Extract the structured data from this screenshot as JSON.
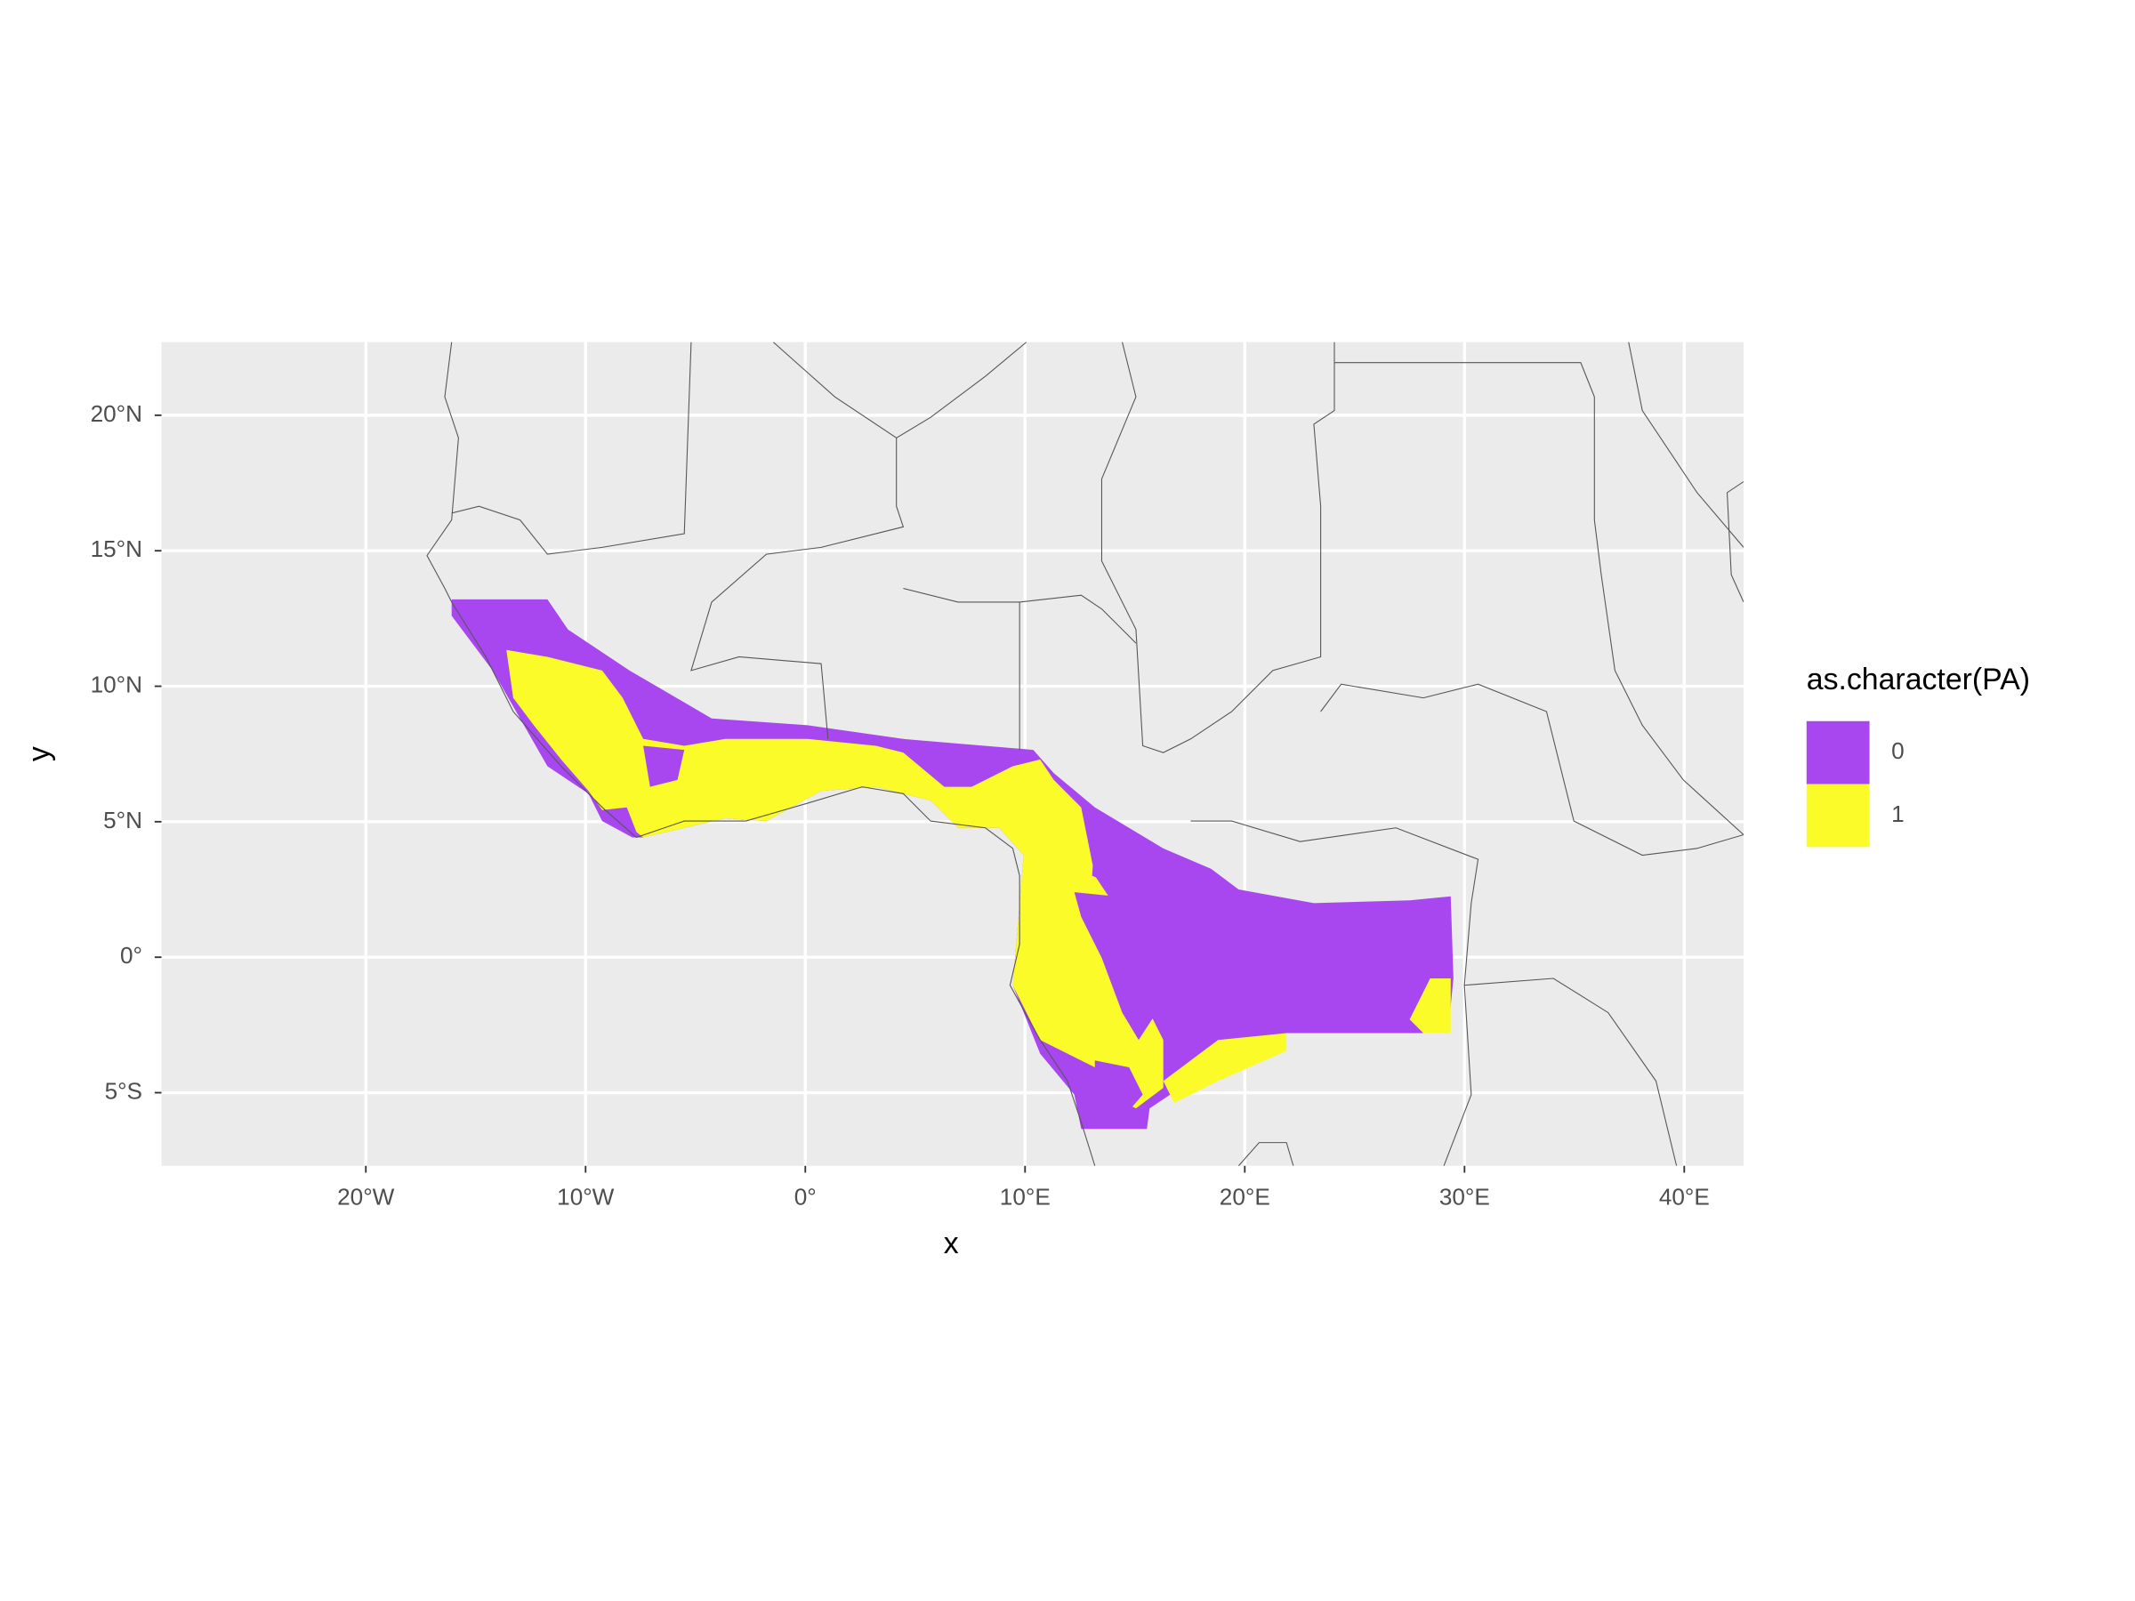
{
  "chart_data": {
    "type": "map",
    "x_label": "x",
    "y_label": "y",
    "xlim": [
      -29.3,
      42.7
    ],
    "ylim": [
      -7.7,
      22.7
    ],
    "xticks": [
      {
        "value": -20,
        "label": "20°W"
      },
      {
        "value": -10,
        "label": "10°W"
      },
      {
        "value": 0,
        "label": "0°"
      },
      {
        "value": 10,
        "label": "10°E"
      },
      {
        "value": 20,
        "label": "20°E"
      },
      {
        "value": 30,
        "label": "30°E"
      },
      {
        "value": 40,
        "label": "40°E"
      }
    ],
    "yticks": [
      {
        "value": -5,
        "label": "5°S"
      },
      {
        "value": 0,
        "label": "0°"
      },
      {
        "value": 5,
        "label": "5°N"
      },
      {
        "value": 10,
        "label": "10°N"
      },
      {
        "value": 15,
        "label": "15°N"
      },
      {
        "value": 20,
        "label": "20°N"
      }
    ],
    "grid": true,
    "legend_title": "as.character(PA)",
    "legend_position": "right",
    "series": [
      {
        "name": "0",
        "color": "#a846ef"
      },
      {
        "name": "1",
        "color": "#fbfb2a"
      }
    ]
  }
}
